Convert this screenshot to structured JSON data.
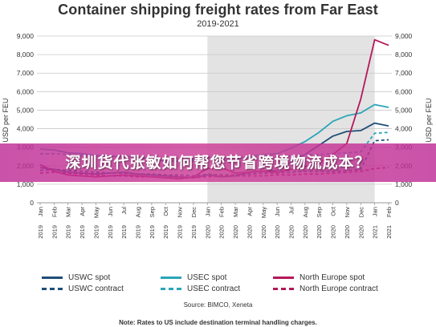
{
  "banner_text": "深圳货代张敏如何帮您节省跨境物流成本？",
  "chart_data": {
    "type": "line",
    "title": "Container shipping freight rates from Far East",
    "subtitle": "2019-2021",
    "ylabel": "USD per FEU",
    "ylim": [
      0,
      9000
    ],
    "y_ticks": [
      "0",
      "1,000",
      "2,000",
      "3,000",
      "4,000",
      "5,000",
      "6,000",
      "7,000",
      "8,000",
      "9,000"
    ],
    "x_ticks": [
      "Jan 2019",
      "Feb 2019",
      "Mar 2019",
      "Apr 2019",
      "May 2019",
      "Jun 2019",
      "Jul 2019",
      "Aug 2019",
      "Sep 2019",
      "Oct 2019",
      "Nov 2019",
      "Dec 2019",
      "Jan 2020",
      "Feb 2020",
      "Mar 2020",
      "Apr 2020",
      "May 2020",
      "Jun 2020",
      "Jul 2020",
      "Aug 2020",
      "Sep 2020",
      "Oct 2020",
      "Nov 2020",
      "Dec 2020",
      "Jan 2021",
      "Feb 2021"
    ],
    "shaded_period": [
      "Jan 2020",
      "Jan 2021"
    ],
    "grid": true,
    "source": "Source: BIMCO, Xeneta",
    "note": "Note: Rates to US include destination terminal handling charges.",
    "series": [
      {
        "name": "USWC spot",
        "color": "#1f4e79",
        "dash": "solid",
        "values": [
          1900,
          1800,
          1650,
          1600,
          1550,
          1600,
          1650,
          1550,
          1500,
          1450,
          1400,
          1350,
          1500,
          1400,
          1450,
          1650,
          1700,
          1750,
          2200,
          2600,
          3100,
          3600,
          3850,
          3900,
          4300,
          4150
        ]
      },
      {
        "name": "USWC contract",
        "color": "#1f4e79",
        "dash": "dashed",
        "values": [
          1750,
          1800,
          1750,
          1700,
          1650,
          1600,
          1600,
          1550,
          1550,
          1500,
          1500,
          1450,
          1550,
          1500,
          1500,
          1550,
          1600,
          1600,
          1650,
          1700,
          1700,
          1700,
          1750,
          1800,
          3350,
          3400
        ]
      },
      {
        "name": "USEC spot",
        "color": "#2aa5b8",
        "dash": "solid",
        "values": [
          2900,
          2850,
          2700,
          2650,
          2550,
          2500,
          2500,
          2450,
          2350,
          2250,
          2250,
          2250,
          2400,
          2300,
          2300,
          2500,
          2600,
          2650,
          2950,
          3300,
          3800,
          4400,
          4700,
          4850,
          5300,
          5150
        ]
      },
      {
        "name": "USEC contract",
        "color": "#2aa5b8",
        "dash": "dashed",
        "values": [
          2650,
          2650,
          2600,
          2550,
          2550,
          2500,
          2500,
          2450,
          2450,
          2400,
          2400,
          2350,
          2450,
          2450,
          2400,
          2450,
          2500,
          2500,
          2550,
          2600,
          2600,
          2650,
          2700,
          2750,
          3750,
          3800
        ]
      },
      {
        "name": "North Europe spot",
        "color": "#b5175a",
        "dash": "solid",
        "values": [
          2050,
          1700,
          1500,
          1450,
          1400,
          1450,
          1500,
          1450,
          1400,
          1350,
          1300,
          1400,
          1850,
          1900,
          1600,
          1650,
          1700,
          1650,
          1800,
          1950,
          2150,
          2600,
          3200,
          5600,
          8800,
          8500
        ]
      },
      {
        "name": "North Europe contract",
        "color": "#b5175a",
        "dash": "dashed",
        "values": [
          1600,
          1650,
          1600,
          1550,
          1500,
          1450,
          1450,
          1400,
          1400,
          1350,
          1350,
          1350,
          1400,
          1450,
          1450,
          1450,
          1450,
          1500,
          1500,
          1550,
          1550,
          1600,
          1650,
          1700,
          1850,
          1900
        ]
      }
    ]
  }
}
